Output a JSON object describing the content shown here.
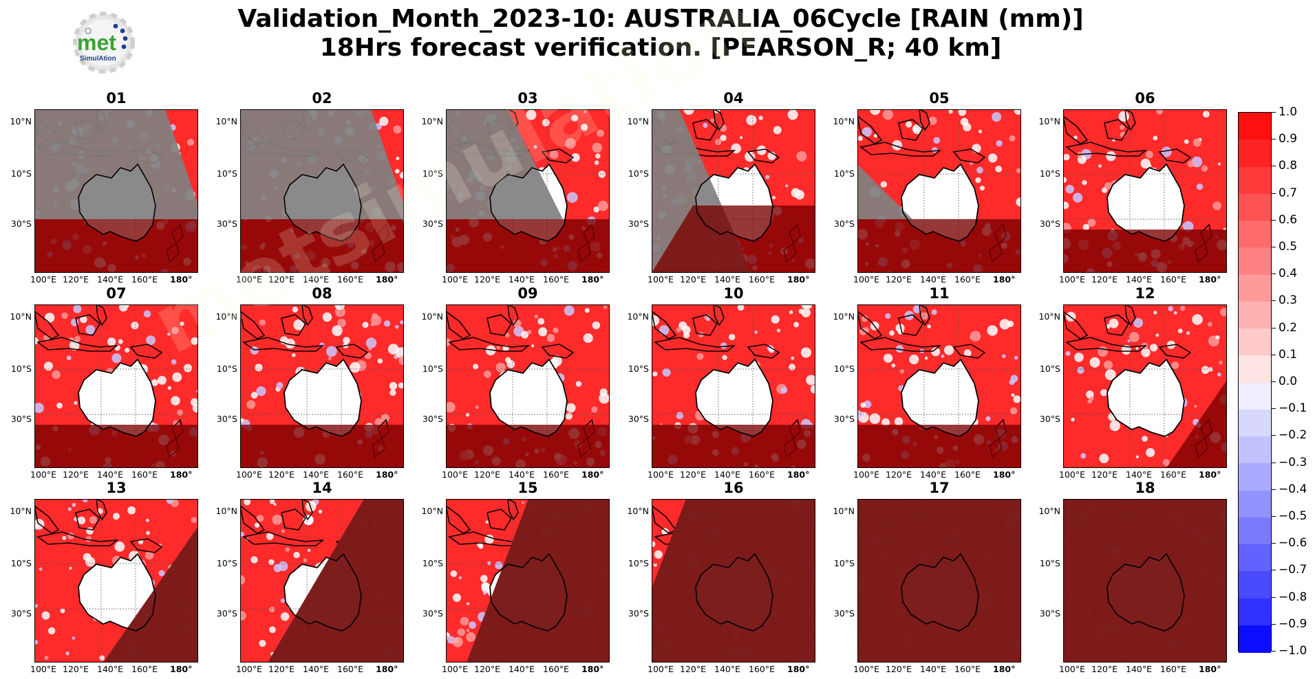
{
  "title_line1": "Validation_Month_2023-10: AUSTRALIA_06Cycle [RAIN (mm)]",
  "title_line2": "18Hrs forecast verification.  [PEARSON_R; 40 km]",
  "logo": {
    "text": "met",
    "subtext": "SimulAtion",
    "icon": "gear-logo-icon",
    "accent": "#3aa335",
    "dots": "#1f3f8f"
  },
  "lat_labels": [
    "10°N",
    "10°S",
    "30°S"
  ],
  "lon_labels": [
    "100°E",
    "120°E",
    "140°E",
    "160°E",
    "180°"
  ],
  "panels": [
    {
      "label": "01",
      "unverified": "most"
    },
    {
      "label": "02",
      "unverified": "most"
    },
    {
      "label": "03",
      "unverified": "west-half"
    },
    {
      "label": "04",
      "unverified": "west-south"
    },
    {
      "label": "05",
      "unverified": "south-west"
    },
    {
      "label": "06",
      "unverified": "south"
    },
    {
      "label": "07",
      "unverified": "south"
    },
    {
      "label": "08",
      "unverified": "south"
    },
    {
      "label": "09",
      "unverified": "south"
    },
    {
      "label": "10",
      "unverified": "south"
    },
    {
      "label": "11",
      "unverified": "south"
    },
    {
      "label": "12",
      "unverified": "south-east"
    },
    {
      "label": "13",
      "unverified": "east"
    },
    {
      "label": "14",
      "unverified": "east-half"
    },
    {
      "label": "15",
      "unverified": "east-most"
    },
    {
      "label": "16",
      "unverified": "nearly-all"
    },
    {
      "label": "17",
      "unverified": "all"
    },
    {
      "label": "18",
      "unverified": "all"
    }
  ],
  "colorbar": {
    "min": -1.0,
    "max": 1.0,
    "step": 0.1,
    "tick_labels": [
      "1.0",
      "0.9",
      "0.8",
      "0.7",
      "0.6",
      "0.5",
      "0.4",
      "0.3",
      "0.2",
      "0.1",
      "0.0",
      "−0.1",
      "−0.2",
      "−0.3",
      "−0.4",
      "−0.5",
      "−0.6",
      "−0.7",
      "−0.8",
      "−0.9",
      "−1.0"
    ],
    "colors": [
      "#ff1010",
      "#ff2424",
      "#ff3a3a",
      "#ff5252",
      "#ff6a6a",
      "#ff8282",
      "#ff9a9a",
      "#ffb2b2",
      "#ffcaca",
      "#ffe4e4",
      "#eeeeff",
      "#d8d8ff",
      "#c2c2ff",
      "#aaaaff",
      "#9292ff",
      "#7a7aff",
      "#6262ff",
      "#4a4aff",
      "#3030ff",
      "#0c0cff"
    ]
  },
  "colors": {
    "land_mask": "#808080",
    "dark_overlay": "#7a0000",
    "ocean_pos": "#ff1a1a"
  }
}
